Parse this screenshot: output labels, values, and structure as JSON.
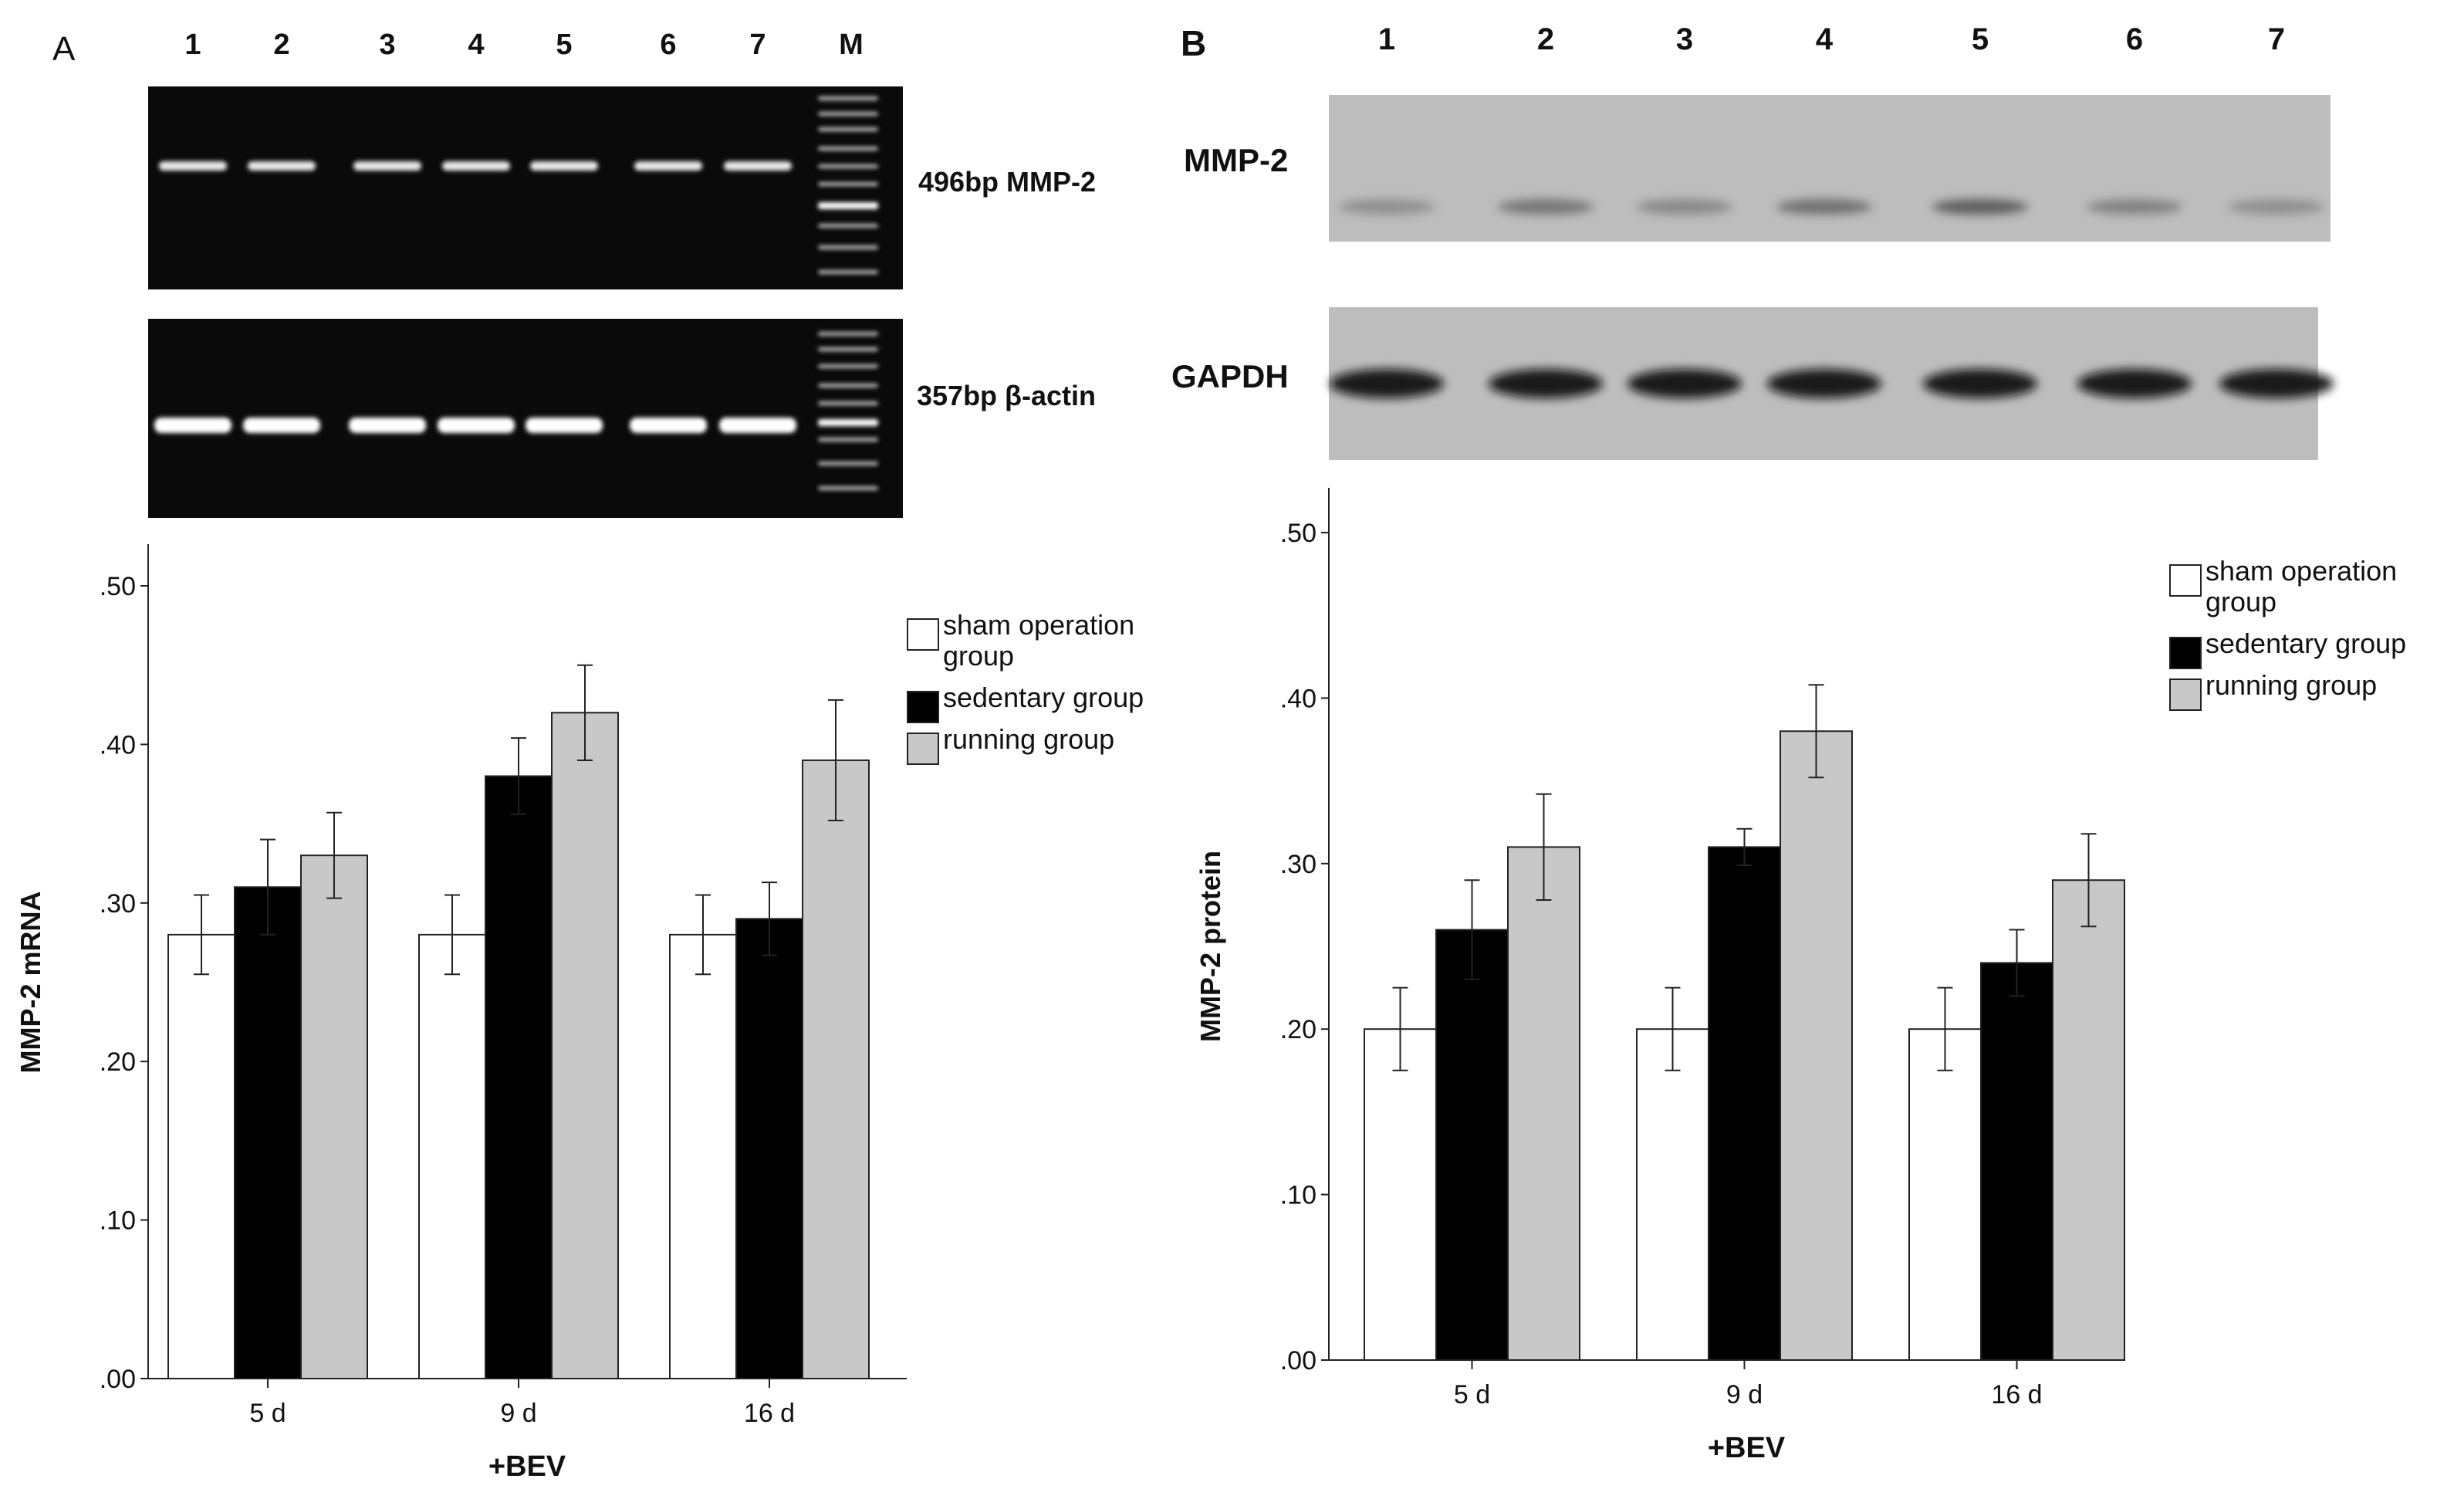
{
  "panel_a": {
    "letter": "A",
    "lane_labels": [
      "1",
      "2",
      "3",
      "4",
      "5",
      "6",
      "7",
      "M"
    ],
    "gel_top_label": "496bp MMP-2",
    "gel_bottom_label": "357bp β-actin"
  },
  "panel_b": {
    "letter": "B",
    "lane_labels": [
      "1",
      "2",
      "3",
      "4",
      "5",
      "6",
      "7"
    ],
    "blot_top_label": "MMP-2",
    "blot_bottom_label": "GAPDH"
  },
  "colors": {
    "sham": "#ffffff",
    "sedentary": "#000000",
    "running": "#c8c8c8",
    "gel_background": "#0a0a0a",
    "blot_background": "#bdbdbd"
  },
  "chart_data": [
    {
      "type": "bar",
      "panel": "A",
      "categories": [
        "5 d",
        "9 d",
        "16 d"
      ],
      "series": [
        {
          "name": "sham operation group",
          "values": [
            0.28,
            0.28,
            0.28
          ],
          "err": [
            0.025,
            0.025,
            0.025
          ]
        },
        {
          "name": "sedentary group",
          "values": [
            0.31,
            0.38,
            0.29
          ],
          "err": [
            0.03,
            0.024,
            0.023
          ]
        },
        {
          "name": "running group",
          "values": [
            0.33,
            0.42,
            0.39
          ],
          "err": [
            0.027,
            0.03,
            0.038
          ]
        }
      ],
      "ylabel": "MMP-2 mRNA",
      "xlabel": "+BEV",
      "ylim": [
        0,
        0.5
      ],
      "yticks": [
        ".00",
        ".10",
        ".20",
        ".30",
        ".40",
        ".50"
      ],
      "legend": "top-right",
      "grid": false
    },
    {
      "type": "bar",
      "panel": "B",
      "categories": [
        "5 d",
        "9 d",
        "16 d"
      ],
      "series": [
        {
          "name": "sham operation group",
          "values": [
            0.2,
            0.2,
            0.2
          ],
          "err": [
            0.025,
            0.025,
            0.025
          ]
        },
        {
          "name": "sedentary group",
          "values": [
            0.26,
            0.31,
            0.24
          ],
          "err": [
            0.03,
            0.011,
            0.02
          ]
        },
        {
          "name": "running group",
          "values": [
            0.31,
            0.38,
            0.29
          ],
          "err": [
            0.032,
            0.028,
            0.028
          ]
        }
      ],
      "ylabel": "MMP-2 protein",
      "xlabel": "+BEV",
      "ylim": [
        0,
        0.5
      ],
      "yticks": [
        ".00",
        ".10",
        ".20",
        ".30",
        ".40",
        ".50"
      ],
      "legend": "top-right",
      "grid": false
    }
  ]
}
